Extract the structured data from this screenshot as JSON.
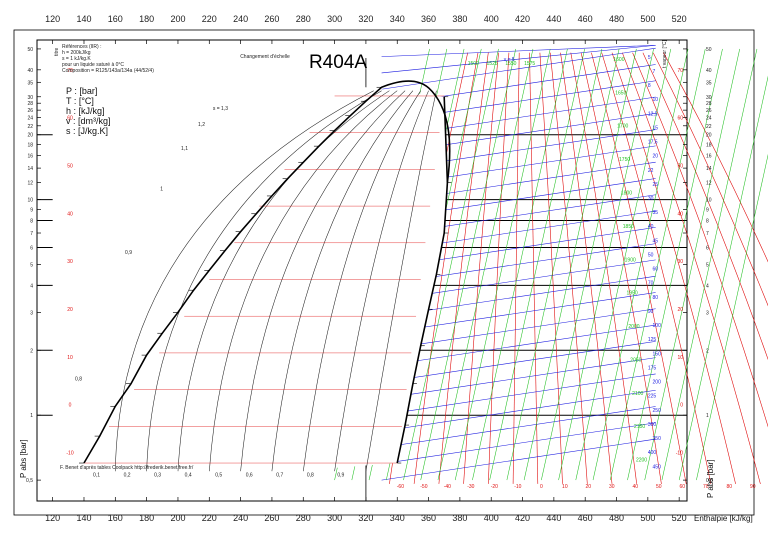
{
  "chart_data": {
    "type": "line",
    "title": "R404A",
    "refs_block": [
      "Références (IIR) :",
      "h = 200kJ/kg",
      "s = 1 kJ/kg.K",
      "pour un liquide saturé à 0°C",
      "Composition = R125/143a/134a (44/52/4)"
    ],
    "units_legend": [
      "P : [bar]",
      "T : [°C]",
      "h : [kJ/kg]",
      "v : [dm³/kg]",
      "s : [J/kg.K]"
    ],
    "scale_change_label": "Changement d'échelle",
    "left_titre_label": "titre",
    "right_t_label": "t vapeur [°C]",
    "credit": "F. Benet d'après tables Coolpack http://frederik.benet.free.fr/",
    "xlabel": "Enthalpie [kJ/kg]",
    "ylabel": "P abs [bar]",
    "x_ticks": [
      "120",
      "140",
      "160",
      "180",
      "200",
      "220",
      "240",
      "260",
      "280",
      "300",
      "320",
      "340",
      "360",
      "380",
      "400",
      "420",
      "440",
      "460",
      "480",
      "500",
      "520"
    ],
    "x_tick_values": [
      120,
      140,
      160,
      180,
      200,
      220,
      240,
      260,
      280,
      300,
      320,
      340,
      360,
      380,
      400,
      420,
      440,
      460,
      480,
      500,
      520
    ],
    "xlim": [
      110,
      525
    ],
    "y_ticks": [
      "50",
      "40",
      "35",
      "30",
      "28",
      "26",
      "24",
      "22",
      "20",
      "18",
      "16",
      "14",
      "12",
      "10",
      "9",
      "8",
      "7",
      "6",
      "5",
      "4",
      "3",
      "2",
      "1",
      "0,5"
    ],
    "y_tick_values": [
      50,
      40,
      35,
      30,
      28,
      26,
      24,
      22,
      20,
      18,
      16,
      14,
      12,
      10,
      9,
      8,
      7,
      6,
      5,
      4,
      3,
      2,
      1,
      0.5
    ],
    "ylim": [
      0.4,
      55
    ],
    "y_scale": "log",
    "bold_hlines": [
      20,
      10,
      8,
      6,
      4,
      2,
      1
    ],
    "scale_change_x": 320,
    "saturation_liquid": {
      "h": [
        140,
        150,
        160,
        170,
        180,
        190,
        200,
        210,
        220,
        230,
        240,
        250,
        260,
        270,
        280,
        290,
        300,
        310,
        320,
        330
      ],
      "p": [
        0.6,
        0.8,
        1.1,
        1.4,
        1.9,
        2.4,
        3.0,
        3.8,
        4.7,
        5.8,
        7.1,
        8.6,
        10.4,
        12.5,
        14.9,
        17.7,
        20.9,
        24.5,
        28.6,
        33.2
      ]
    },
    "saturation_vapor": {
      "h": [
        340,
        345,
        350,
        355,
        360,
        365,
        370,
        372,
        370
      ],
      "p": [
        0.6,
        0.9,
        1.4,
        2.1,
        3.1,
        4.5,
        7.0,
        12.0,
        30.0
      ]
    },
    "quality_labels": [
      "0,1",
      "0,2",
      "0,3",
      "0,4",
      "0,5",
      "0,6",
      "0,7",
      "0,8",
      "0,9"
    ],
    "entropy_labels_left": [
      "1,3",
      "1,2",
      "1,1",
      "1",
      "0,9",
      "0,8"
    ],
    "temp_red_left": [
      "70",
      "60",
      "50",
      "40",
      "30",
      "20",
      "10",
      "0",
      "-10",
      "-20",
      "-30",
      "-40",
      "-50"
    ],
    "temp_red_right": [
      "70",
      "60",
      "50",
      "40",
      "30",
      "20",
      "10",
      "0",
      "-10",
      "-20",
      "-30",
      "-40",
      "-50"
    ],
    "temp_bottom": [
      "-60",
      "-50",
      "-40",
      "-30",
      "-20",
      "-10",
      "0",
      "10",
      "20",
      "30",
      "40",
      "50",
      "60",
      "70",
      "80",
      "90",
      "100",
      "110",
      "120",
      "130"
    ],
    "volume_labels": [
      "5",
      "7",
      "8",
      "10",
      "12,5",
      "15",
      "17,5",
      "20",
      "22",
      "25",
      "30",
      "35",
      "40",
      "45",
      "50",
      "60",
      "70",
      "80",
      "90",
      "100",
      "125",
      "150",
      "175",
      "200",
      "225",
      "250",
      "300",
      "350",
      "400",
      "450",
      "500"
    ],
    "entropy_green": [
      "1600",
      "1650",
      "1700",
      "1750",
      "1800",
      "1850",
      "1900",
      "1950",
      "2000",
      "2050",
      "2100",
      "2150",
      "2200",
      "2250",
      "2300"
    ],
    "vapor_entropy_top": [
      "1500",
      "1525",
      "1550",
      "1575"
    ],
    "v_top_label": "v = 5",
    "colors": {
      "temperature": "#e01010",
      "volume": "#1a1ae0",
      "entropy": "#22c022",
      "grid": "#000000"
    }
  }
}
